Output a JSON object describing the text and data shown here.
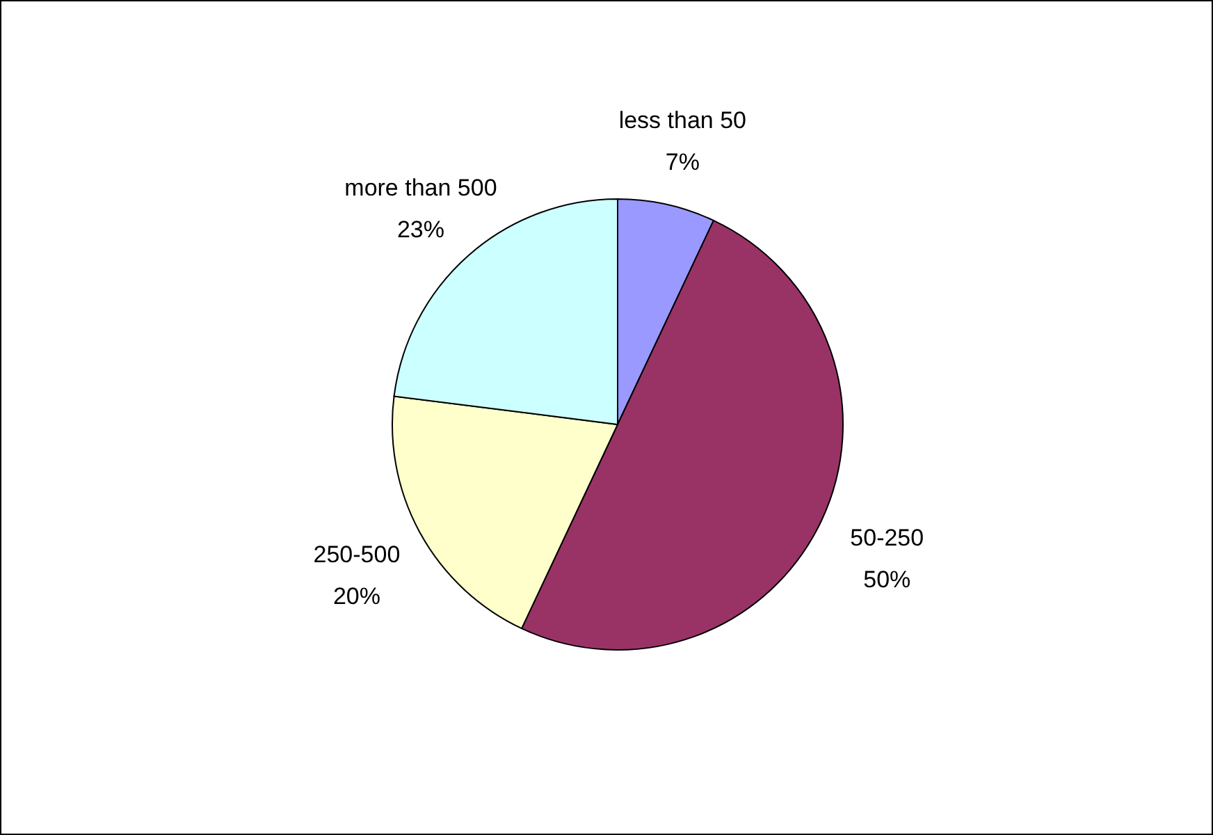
{
  "chart_data": {
    "type": "pie",
    "categories": [
      "less than 50",
      "50-250",
      "250-500",
      "more than 500"
    ],
    "values": [
      7,
      50,
      20,
      23
    ],
    "colors": [
      "#9999ff",
      "#993366",
      "#ffffcc",
      "#ccffff"
    ],
    "value_labels": [
      "7%",
      "50%",
      "20%",
      "23%"
    ]
  }
}
